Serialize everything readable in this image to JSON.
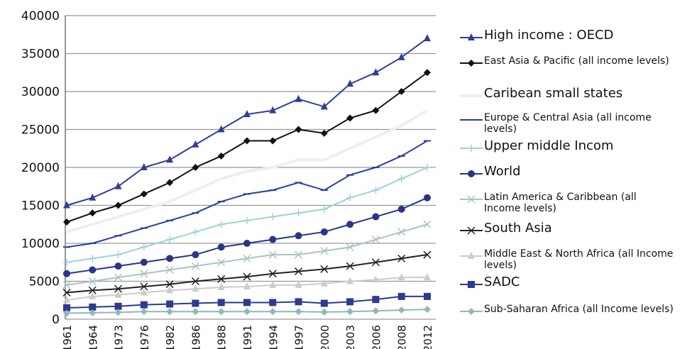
{
  "chart_data": {
    "type": "line",
    "categories": [
      "1961",
      "1964",
      "1973",
      "1976",
      "1982",
      "1986",
      "1988",
      "1991",
      "1994",
      "1997",
      "2000",
      "2003",
      "2006",
      "2008",
      "2012"
    ],
    "ylim": [
      0,
      40000
    ],
    "yticks": [
      0,
      5000,
      10000,
      15000,
      20000,
      25000,
      30000,
      35000,
      40000
    ],
    "grid": true,
    "series": [
      {
        "name": "High income : OECD",
        "color": "#2e3f99",
        "marker": "triangle",
        "values": [
          15000,
          16000,
          17500,
          20000,
          21000,
          23000,
          25000,
          27000,
          27500,
          29000,
          28000,
          31000,
          32500,
          34500,
          37000
        ]
      },
      {
        "name": "East Asia & Pacific (all income levels)",
        "color": "#111111",
        "marker": "diamond",
        "values": [
          12800,
          14000,
          15000,
          16500,
          18000,
          20000,
          21500,
          23500,
          23500,
          25000,
          24500,
          26500,
          27500,
          30000,
          32500
        ]
      },
      {
        "name": "Caribean small states",
        "color": "#eeeeee",
        "marker": "none",
        "values": [
          11500,
          12500,
          13500,
          14500,
          15500,
          17000,
          18500,
          19500,
          20000,
          21000,
          21000,
          22500,
          24000,
          25500,
          27500
        ]
      },
      {
        "name": "Europe & Central Asia (all income levels)",
        "color": "#2b3f9a",
        "marker": "dash",
        "values": [
          9500,
          10000,
          11000,
          12000,
          13000,
          14000,
          15500,
          16500,
          17000,
          18000,
          17000,
          19000,
          20000,
          21500,
          23500
        ]
      },
      {
        "name": "Upper middle Incom",
        "color": "#9cd3d8",
        "marker": "plus",
        "values": [
          7500,
          8000,
          8500,
          9500,
          10500,
          11500,
          12500,
          13000,
          13500,
          14000,
          14500,
          16000,
          17000,
          18500,
          20000
        ]
      },
      {
        "name": "World",
        "color": "#2a3588",
        "marker": "circle",
        "values": [
          6000,
          6500,
          7000,
          7500,
          8000,
          8500,
          9500,
          10000,
          10500,
          11000,
          11500,
          12500,
          13500,
          14500,
          16000
        ]
      },
      {
        "name": "Latin America & Caribbean (all Income levels)",
        "color": "#a9c3c2",
        "marker": "x",
        "values": [
          4500,
          5000,
          5500,
          6000,
          6500,
          7000,
          7500,
          8000,
          8500,
          8500,
          9000,
          9500,
          10500,
          11500,
          12500
        ]
      },
      {
        "name": "South Asia",
        "color": "#222222",
        "marker": "x",
        "values": [
          3500,
          3800,
          4000,
          4300,
          4600,
          5000,
          5300,
          5600,
          6000,
          6300,
          6600,
          7000,
          7500,
          8000,
          8500
        ]
      },
      {
        "name": "Middle East & North Africa (all Income levels)",
        "color": "#cccccc",
        "marker": "triangle",
        "values": [
          2500,
          3000,
          3200,
          3500,
          3800,
          4000,
          4200,
          4300,
          4500,
          4500,
          4700,
          5000,
          5200,
          5500,
          5500
        ]
      },
      {
        "name": "SADC",
        "color": "#2c3a8f",
        "marker": "square",
        "values": [
          1500,
          1600,
          1700,
          1900,
          2000,
          2100,
          2200,
          2200,
          2200,
          2300,
          2100,
          2300,
          2600,
          3000,
          3000
        ]
      },
      {
        "name": "Sub-Saharan Africa (all Income levels)",
        "color": "#8fb8b8",
        "marker": "diamond",
        "values": [
          800,
          850,
          900,
          1000,
          1000,
          1000,
          1000,
          1000,
          1000,
          1000,
          950,
          1000,
          1100,
          1200,
          1300
        ]
      }
    ]
  }
}
